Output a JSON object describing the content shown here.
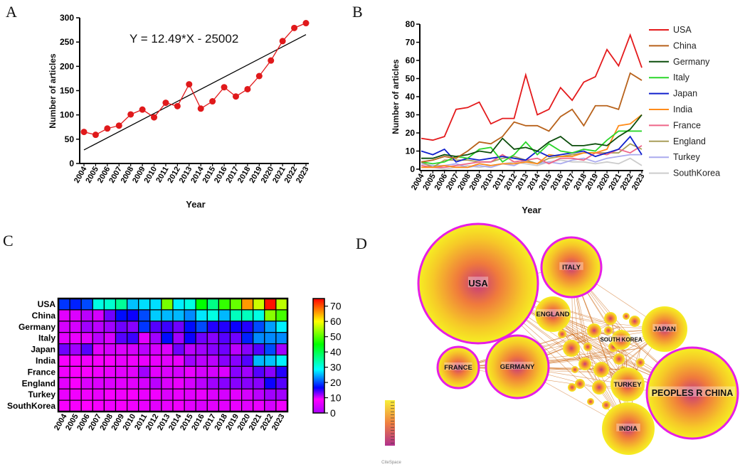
{
  "panel_letters": {
    "a": "A",
    "b": "B",
    "c": "C",
    "d": "D"
  },
  "colors": {
    "panelA_line": "#e0191b",
    "panelA_fit": "#000000",
    "network_ring": "#e61ee6",
    "link": "#d07020"
  },
  "chart_data": [
    {
      "id": "A",
      "type": "line",
      "title": "",
      "xlabel": "Year",
      "ylabel": "Number of articles",
      "annotation": "Y = 12.49*X - 25002",
      "x": [
        "2004",
        "2005",
        "2006",
        "2007",
        "2008",
        "2009",
        "2010",
        "2011",
        "2012",
        "2013",
        "2014",
        "2015",
        "2016",
        "2017",
        "2018",
        "2019",
        "2020",
        "2021",
        "2022",
        "2023"
      ],
      "values": [
        65,
        59,
        72,
        78,
        101,
        111,
        95,
        125,
        118,
        163,
        113,
        128,
        157,
        138,
        153,
        180,
        212,
        252,
        279,
        289
      ],
      "fit": {
        "slope": 12.49,
        "intercept": -25002
      },
      "ylim": [
        0,
        300
      ],
      "yticks": [
        0,
        50,
        100,
        150,
        200,
        250,
        300
      ]
    },
    {
      "id": "B",
      "type": "line",
      "xlabel": "Year",
      "ylabel": "Number of articles",
      "x": [
        "2004",
        "2005",
        "2006",
        "2007",
        "2008",
        "2009",
        "2010",
        "2011",
        "2012",
        "2013",
        "2014",
        "2015",
        "2016",
        "2017",
        "2018",
        "2019",
        "2020",
        "2021",
        "2022",
        "2023"
      ],
      "ylim": [
        0,
        80
      ],
      "yticks": [
        0,
        10,
        20,
        30,
        40,
        50,
        60,
        70,
        80
      ],
      "legend_position": "right",
      "series": [
        {
          "name": "USA",
          "color": "#e41a1c",
          "values": [
            17,
            16,
            18,
            33,
            34,
            37,
            25,
            28,
            28,
            52,
            30,
            33,
            45,
            38,
            48,
            51,
            66,
            57,
            74,
            56
          ]
        },
        {
          "name": "China",
          "color": "#b8621b",
          "values": [
            4,
            5,
            7,
            6,
            10,
            15,
            14,
            18,
            26,
            24,
            24,
            21,
            29,
            33,
            24,
            35,
            35,
            33,
            53,
            49
          ]
        },
        {
          "name": "Germany",
          "color": "#0b4d0b",
          "values": [
            6,
            6,
            8,
            7,
            8,
            10,
            9,
            17,
            11,
            12,
            10,
            15,
            18,
            13,
            13,
            14,
            13,
            18,
            22,
            30
          ]
        },
        {
          "name": "Italy",
          "color": "#2ad62a",
          "values": [
            4,
            3,
            4,
            7,
            6,
            11,
            12,
            4,
            8,
            15,
            8,
            14,
            10,
            9,
            11,
            10,
            16,
            21,
            21,
            21
          ]
        },
        {
          "name": "Japan",
          "color": "#1020cc",
          "values": [
            10,
            8,
            11,
            4,
            6,
            5,
            6,
            7,
            6,
            5,
            10,
            7,
            8,
            9,
            10,
            7,
            9,
            11,
            18,
            8
          ]
        },
        {
          "name": "India",
          "color": "#ff8c1a",
          "values": [
            1,
            1,
            2,
            1,
            1,
            3,
            2,
            3,
            3,
            4,
            3,
            8,
            7,
            7,
            9,
            9,
            11,
            24,
            25,
            30
          ]
        },
        {
          "name": "France",
          "color": "#ee6688",
          "values": [
            2,
            1,
            1,
            2,
            3,
            4,
            4,
            8,
            4,
            5,
            6,
            3,
            6,
            6,
            5,
            9,
            8,
            11,
            9,
            13
          ]
        },
        {
          "name": "England",
          "color": "#a89e5a",
          "values": [
            4,
            1,
            5,
            5,
            5,
            4,
            4,
            6,
            7,
            5,
            3,
            6,
            7,
            8,
            9,
            9,
            9,
            9,
            14,
            11
          ]
        },
        {
          "name": "Turkey",
          "color": "#aaaaee",
          "values": [
            3,
            2,
            2,
            3,
            1,
            2,
            1,
            3,
            2,
            5,
            3,
            4,
            3,
            5,
            6,
            4,
            6,
            7,
            8,
            8
          ]
        },
        {
          "name": "SouthKorea",
          "color": "#cccccc",
          "values": [
            1,
            1,
            0,
            1,
            2,
            1,
            2,
            3,
            4,
            3,
            2,
            4,
            5,
            4,
            4,
            3,
            4,
            3,
            6,
            2
          ]
        }
      ]
    },
    {
      "id": "C",
      "type": "heatmap",
      "x": [
        "2004",
        "2005",
        "2006",
        "2007",
        "2008",
        "2009",
        "2010",
        "2011",
        "2012",
        "2013",
        "2014",
        "2015",
        "2016",
        "2017",
        "2018",
        "2019",
        "2020",
        "2021",
        "2022",
        "2023"
      ],
      "rows": [
        "USA",
        "China",
        "Germany",
        "Italy",
        "Japan",
        "India",
        "France",
        "England",
        "Turkey",
        "SouthKorea"
      ],
      "matrix": [
        [
          17,
          16,
          18,
          33,
          34,
          37,
          25,
          28,
          28,
          52,
          30,
          33,
          45,
          38,
          48,
          51,
          66,
          57,
          74,
          56
        ],
        [
          4,
          5,
          7,
          6,
          10,
          15,
          14,
          18,
          26,
          24,
          24,
          21,
          29,
          33,
          24,
          35,
          35,
          33,
          53,
          49
        ],
        [
          6,
          6,
          8,
          7,
          8,
          10,
          9,
          17,
          11,
          12,
          10,
          15,
          18,
          13,
          13,
          14,
          13,
          18,
          22,
          30
        ],
        [
          4,
          3,
          4,
          7,
          6,
          11,
          12,
          4,
          8,
          15,
          8,
          14,
          10,
          9,
          11,
          10,
          16,
          21,
          21,
          21
        ],
        [
          10,
          8,
          11,
          4,
          6,
          5,
          6,
          7,
          6,
          5,
          10,
          7,
          8,
          9,
          10,
          7,
          9,
          11,
          18,
          8
        ],
        [
          1,
          1,
          2,
          1,
          1,
          3,
          2,
          3,
          3,
          4,
          3,
          8,
          7,
          7,
          9,
          9,
          11,
          24,
          25,
          30
        ],
        [
          2,
          1,
          1,
          2,
          3,
          4,
          4,
          8,
          4,
          5,
          6,
          3,
          6,
          6,
          5,
          9,
          8,
          11,
          9,
          13
        ],
        [
          4,
          1,
          5,
          5,
          5,
          4,
          4,
          6,
          7,
          5,
          3,
          6,
          7,
          8,
          9,
          9,
          9,
          9,
          14,
          11
        ],
        [
          3,
          2,
          2,
          3,
          1,
          2,
          1,
          3,
          2,
          5,
          3,
          4,
          3,
          5,
          6,
          4,
          6,
          7,
          8,
          8
        ],
        [
          1,
          1,
          0,
          1,
          2,
          1,
          2,
          3,
          4,
          3,
          2,
          4,
          5,
          4,
          4,
          3,
          4,
          3,
          6,
          2
        ]
      ],
      "colorbar": {
        "min": 0,
        "max": 75,
        "ticks": [
          0,
          10,
          20,
          30,
          40,
          50,
          60,
          70
        ]
      }
    }
  ],
  "network": {
    "logo_text": "CiteSpace",
    "nodes": [
      {
        "label": "USA",
        "weight": 1.0,
        "ring": true
      },
      {
        "label": "PEOPLES R CHINA",
        "weight": 0.87,
        "ring": true
      },
      {
        "label": "GERMANY",
        "weight": 0.48,
        "ring": true
      },
      {
        "label": "ITALY",
        "weight": 0.36,
        "ring": true
      },
      {
        "label": "FRANCE",
        "weight": 0.3,
        "ring": true
      },
      {
        "label": "ENGLAND",
        "weight": 0.25,
        "ring": false
      },
      {
        "label": "JAPAN",
        "weight": 0.33,
        "ring": false
      },
      {
        "label": "INDIA",
        "weight": 0.37,
        "ring": false
      },
      {
        "label": "TURKEY",
        "weight": 0.2,
        "ring": false
      },
      {
        "label": "SOUTH KOREA",
        "weight": 0.15,
        "ring": false
      }
    ]
  }
}
